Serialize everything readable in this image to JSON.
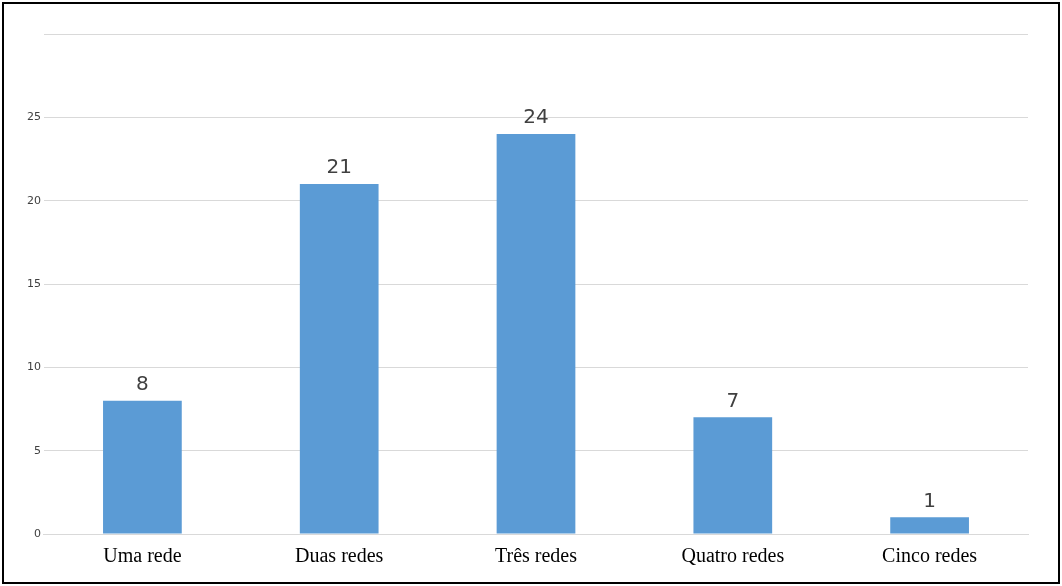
{
  "chart_data": {
    "type": "bar",
    "categories": [
      "Uma rede",
      "Duas redes",
      "Três redes",
      "Quatro redes",
      "Cinco redes"
    ],
    "values": [
      8,
      21,
      24,
      7,
      1
    ],
    "color": "#5b9bd5",
    "ylim": [
      0,
      30
    ],
    "yticks": [
      0,
      5,
      10,
      15,
      20,
      25,
      {
        "value": 30,
        "label": null
      }
    ],
    "grid": "y",
    "data_labels": true
  }
}
